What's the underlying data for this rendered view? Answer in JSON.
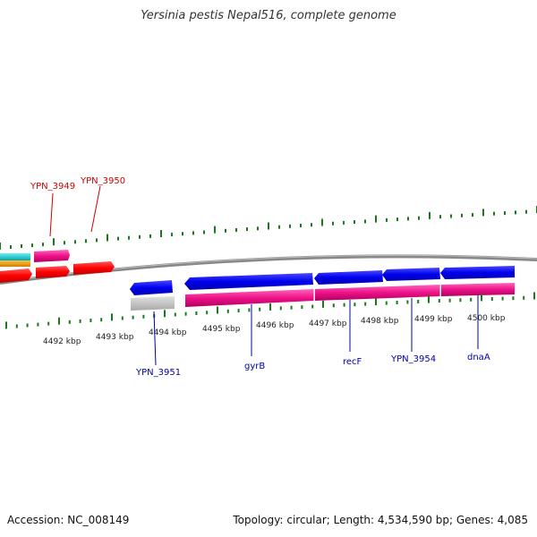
{
  "title": "Yersinia pestis Nepal516, complete genome",
  "footer": {
    "accession": "Accession: NC_008149",
    "summary": "Topology: circular; Length: 4,534,590 bp; Genes: 4,085"
  },
  "kbp_labels": [
    "4492 kbp",
    "4493 kbp",
    "4494 kbp",
    "4495 kbp",
    "4496 kbp",
    "4497 kbp",
    "4498 kbp",
    "4499 kbp",
    "4500 kbp"
  ],
  "genes_top": [
    "YPN_3949",
    "YPN_3950"
  ],
  "genes_bottom": [
    "YPN_3951",
    "gyrB",
    "recF",
    "YPN_3954",
    "dnaA"
  ],
  "colors": {
    "forward_gene_label": "#cc0000",
    "reverse_gene_label": "#0000aa",
    "tick": "#1a7a1a",
    "backbone": "#888888",
    "cds_blue": "#0000ee",
    "cds_red": "#ff0000",
    "cds_pink": "#ee1188",
    "cds_cyan": "#00c8d0",
    "cds_orange": "#f0a000",
    "cds_grey": "#c0c0c0"
  }
}
